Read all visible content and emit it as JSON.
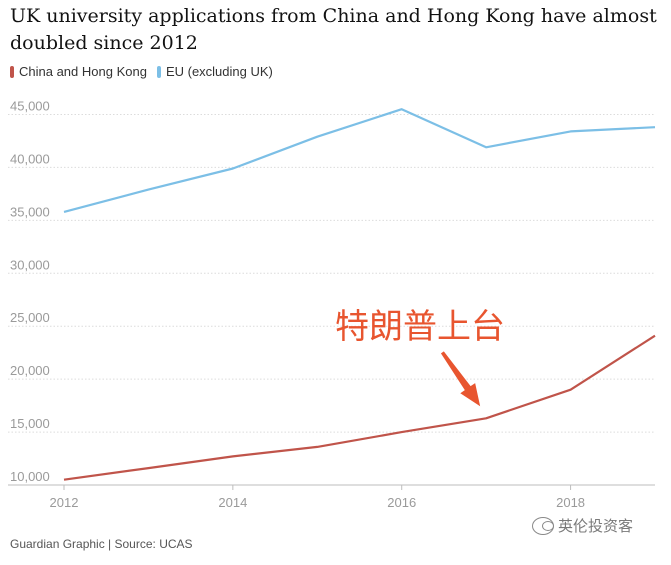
{
  "chart_data": {
    "type": "line",
    "title": "UK university applications from China and Hong Kong have almost doubled since 2012",
    "x": [
      2012,
      2013,
      2014,
      2015,
      2016,
      2017,
      2018,
      2019
    ],
    "x_ticks": [
      "2012",
      "2014",
      "2016",
      "2018"
    ],
    "y_ticks": [
      "10,000",
      "15,000",
      "20,000",
      "25,000",
      "30,000",
      "35,000",
      "40,000",
      "45,000"
    ],
    "ylim": [
      10000,
      47500
    ],
    "xlim": [
      2012,
      2019
    ],
    "series": [
      {
        "name": "China and Hong Kong",
        "color": "#c0544a",
        "values": [
          10500,
          11600,
          12700,
          13600,
          15000,
          16300,
          19000,
          24100
        ]
      },
      {
        "name": "EU (excluding UK)",
        "color": "#7cbfe6",
        "values": [
          35800,
          37900,
          39900,
          42900,
          45500,
          41900,
          43400,
          43800
        ]
      }
    ],
    "annotation": {
      "text": "特朗普上台",
      "x": 2017,
      "color": "#e8552f"
    }
  },
  "footer": {
    "source": "Guardian Graphic | Source: UCAS"
  },
  "watermark": {
    "text": "英伦投资客",
    "icon": "wechat-icon"
  }
}
